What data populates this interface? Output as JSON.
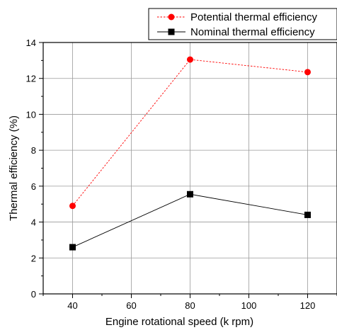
{
  "chart_data": {
    "type": "line",
    "xlabel": "Engine rotational speed (k rpm)",
    "ylabel": "Thermal efficiency (%)",
    "xlim": [
      30,
      130
    ],
    "ylim": [
      0,
      14
    ],
    "xticks": [
      40,
      60,
      80,
      100,
      120
    ],
    "yticks": [
      0,
      2,
      4,
      6,
      8,
      10,
      12,
      14
    ],
    "grid": true,
    "legend_position": "top-right",
    "series": [
      {
        "name": "Potential thermal efficiency",
        "x": [
          40,
          80,
          120
        ],
        "y": [
          4.9,
          13.05,
          12.35
        ],
        "color": "#ff0000",
        "line_style": "dotted",
        "marker": "circle"
      },
      {
        "name": "Nominal thermal efficiency",
        "x": [
          40,
          80,
          120
        ],
        "y": [
          2.6,
          5.55,
          4.4
        ],
        "color": "#000000",
        "line_style": "solid",
        "marker": "square"
      }
    ]
  }
}
